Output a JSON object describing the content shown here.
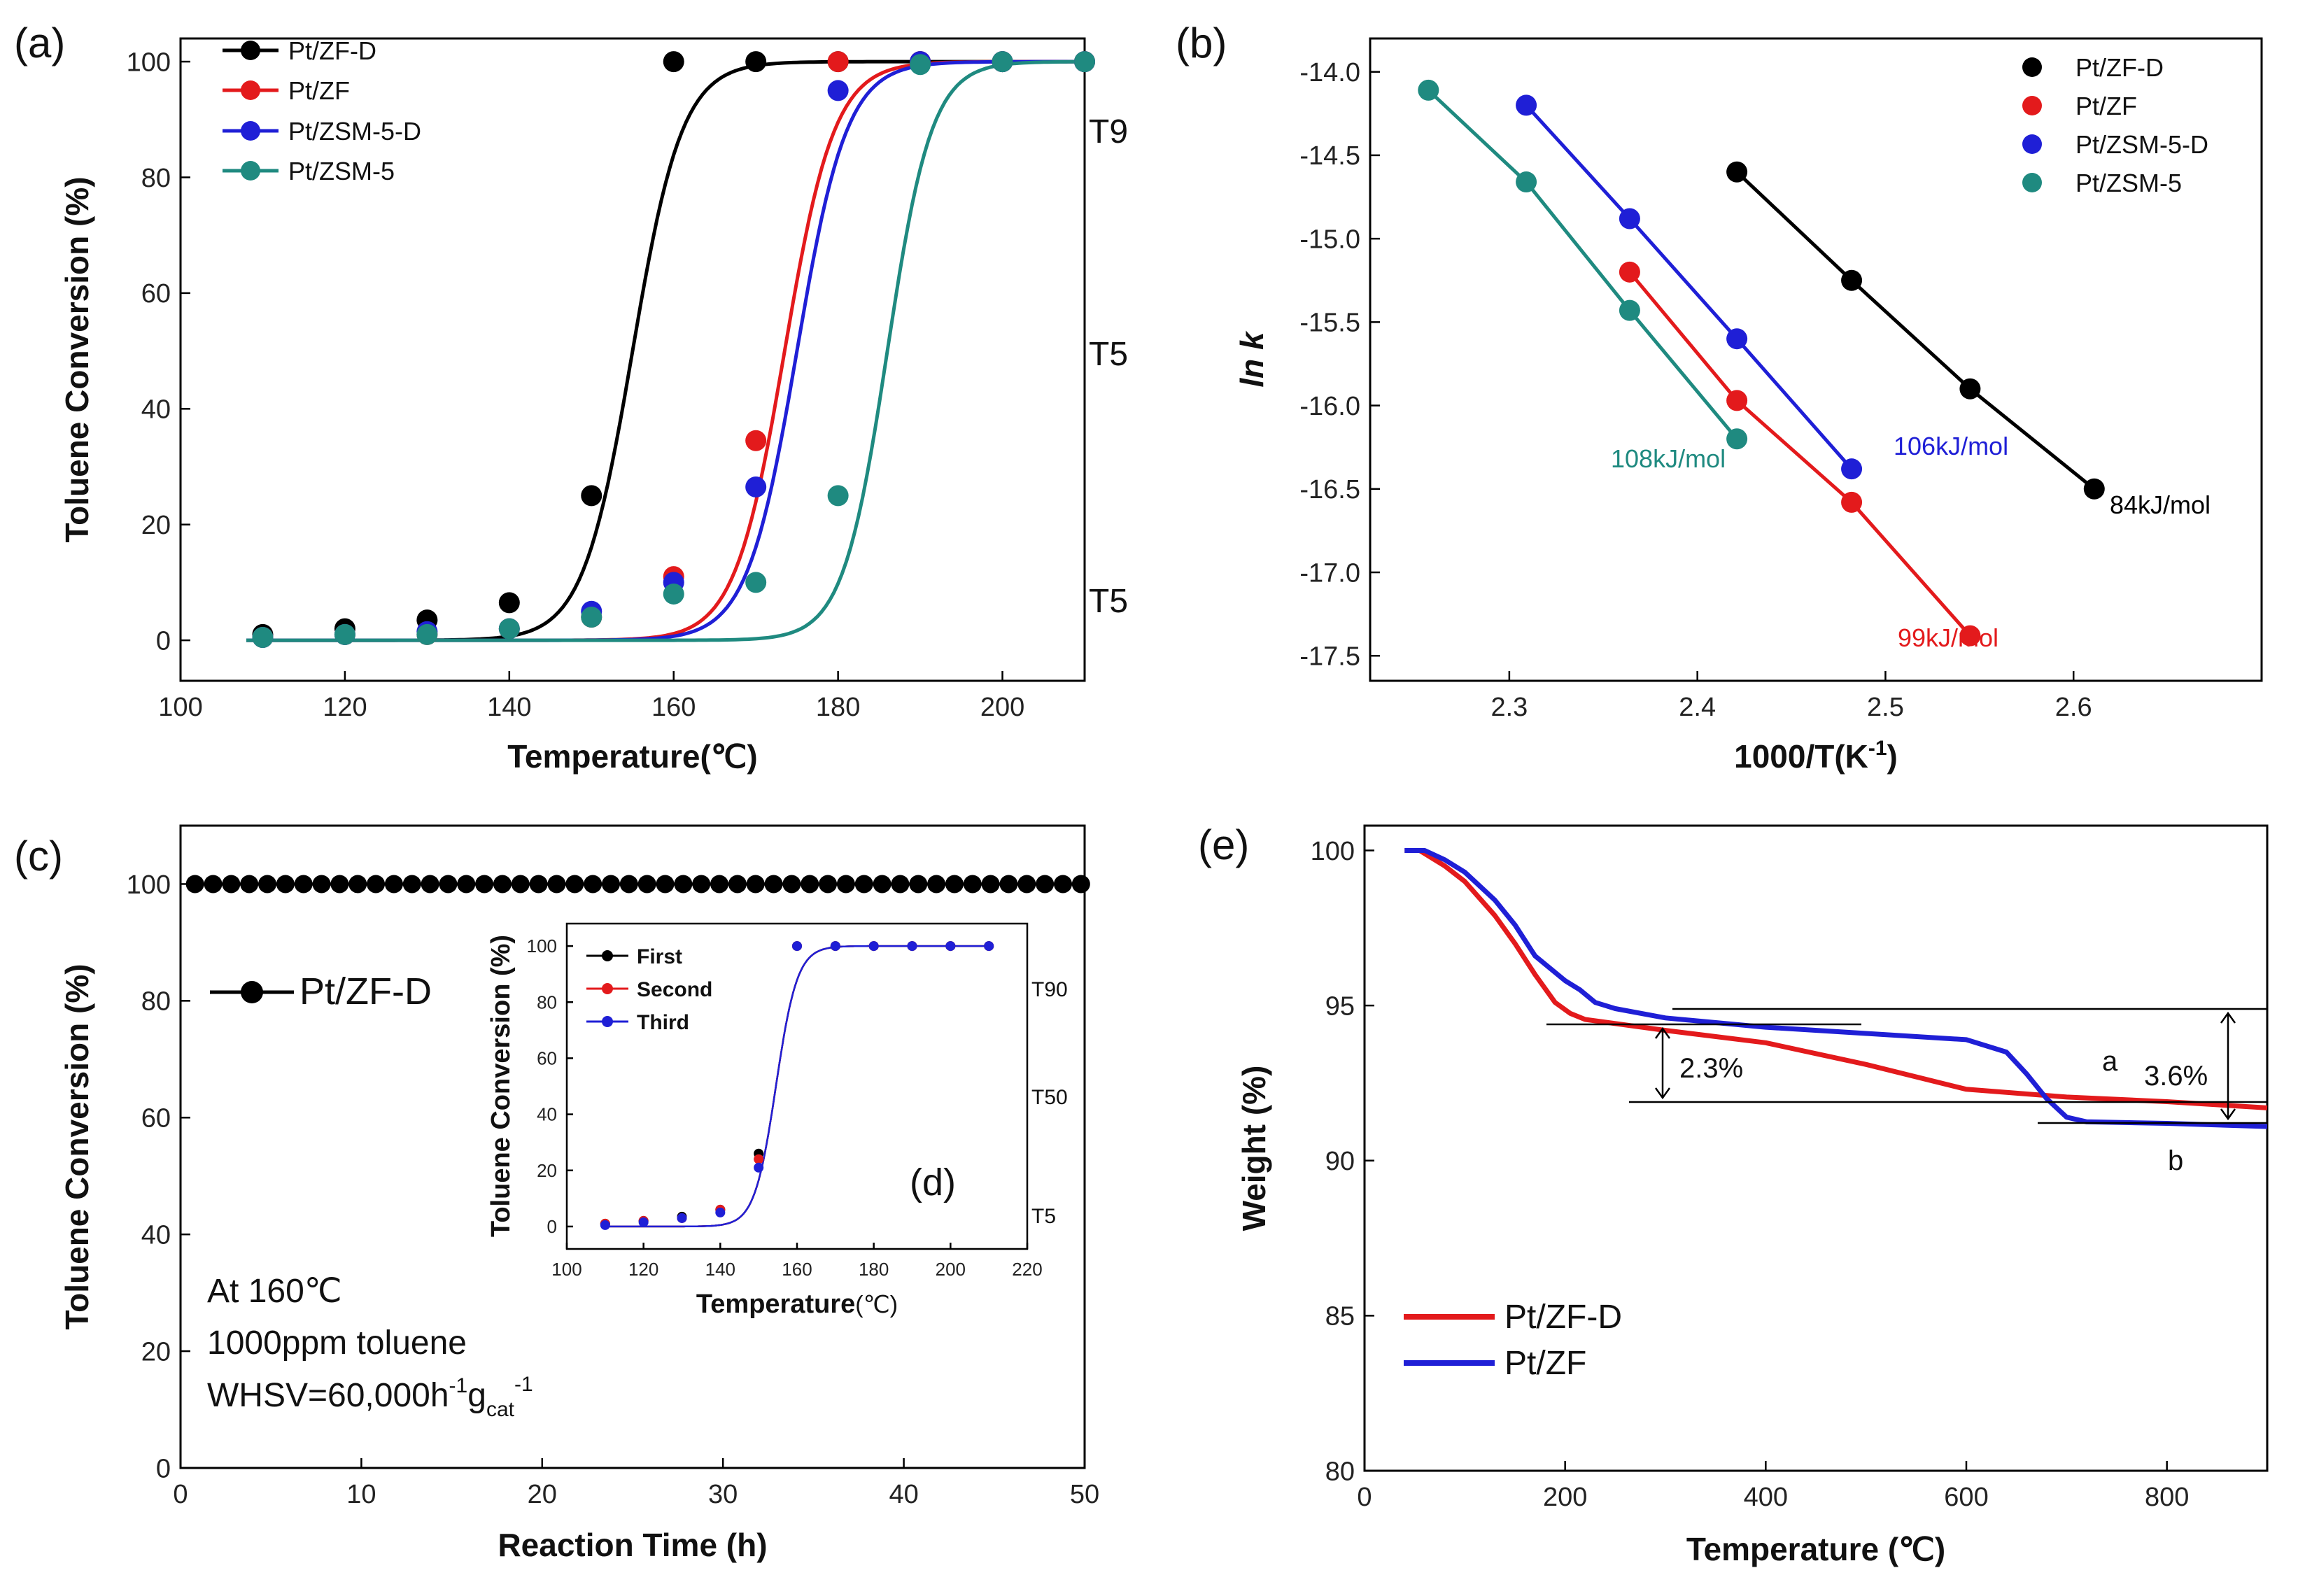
{
  "panels": [
    {
      "id": "a",
      "label": "(a)",
      "type": "scatter",
      "xlabel": "Temperature(℃)",
      "ylabel": "Toluene Conversion (%)",
      "xlim": [
        100,
        210
      ],
      "ylim": [
        -7,
        104
      ],
      "xticks": [
        "100",
        "120",
        "140",
        "160",
        "180",
        "200"
      ],
      "yticks": [
        "0",
        "20",
        "40",
        "60",
        "80",
        "100"
      ],
      "side_labels": [
        "T9",
        "T5",
        "T5"
      ],
      "series": [
        {
          "name": "Pt/ZF-D",
          "color": "#000000",
          "x": [
            110,
            120,
            130,
            140,
            150,
            160,
            170,
            180,
            190,
            200,
            210
          ],
          "y": [
            1,
            2,
            3.5,
            6.5,
            25,
            100,
            100,
            100,
            100,
            100,
            100
          ],
          "T50": 155,
          "k": 0.33
        },
        {
          "name": "Pt/ZF",
          "color": "#e31a1c",
          "x": [
            110,
            120,
            130,
            140,
            150,
            160,
            170,
            180,
            190,
            200,
            210
          ],
          "y": [
            0.5,
            1,
            1,
            2,
            4,
            11,
            34.5,
            100,
            100,
            100,
            100
          ],
          "T50": 173.5,
          "k": 0.33
        },
        {
          "name": "Pt/ZSM-5-D",
          "color": "#1f1fd6",
          "x": [
            110,
            120,
            130,
            140,
            150,
            160,
            170,
            180,
            190,
            200,
            210
          ],
          "y": [
            0.5,
            1,
            1.5,
            2,
            5,
            10,
            26.5,
            95,
            100,
            100,
            100
          ],
          "T50": 175,
          "k": 0.33
        },
        {
          "name": "Pt/ZSM-5",
          "color": "#1f8a80",
          "x": [
            110,
            120,
            130,
            140,
            150,
            160,
            170,
            180,
            190,
            200,
            210
          ],
          "y": [
            0.5,
            1,
            1,
            2,
            4,
            8,
            10,
            25,
            99.5,
            100,
            100
          ],
          "T50": 186,
          "k": 0.37
        }
      ]
    },
    {
      "id": "b",
      "label": "(b)",
      "type": "scatter",
      "xlabel": "1000/T(K",
      "xlabel_sup": "-1",
      "xlabel_tail": ")",
      "ylabel": "ln k",
      "xlim": [
        2.226,
        2.7
      ],
      "ylim": [
        -17.65,
        -13.8
      ],
      "xticks": [
        "2.3",
        "2.4",
        "2.5",
        "2.6"
      ],
      "yticks": [
        "-14.0",
        "-14.5",
        "-15.0",
        "-15.5",
        "-16.0",
        "-16.5",
        "-17.0",
        "-17.5"
      ],
      "series": [
        {
          "name": "Pt/ZF-D",
          "color": "#000000",
          "x": [
            2.421,
            2.482,
            2.545,
            2.611
          ],
          "y": [
            -14.6,
            -15.25,
            -15.9,
            -16.5
          ],
          "energy": "84kJ/mol"
        },
        {
          "name": "Pt/ZF",
          "color": "#e31a1c",
          "x": [
            2.364,
            2.421,
            2.482,
            2.545
          ],
          "y": [
            -15.2,
            -15.97,
            -16.58,
            -17.38
          ],
          "energy": "99kJ/mol"
        },
        {
          "name": "Pt/ZSM-5-D",
          "color": "#1f1fd6",
          "x": [
            2.309,
            2.364,
            2.421,
            2.482
          ],
          "y": [
            -14.2,
            -14.88,
            -15.6,
            -16.38
          ],
          "energy": "106kJ/mol"
        },
        {
          "name": "Pt/ZSM-5",
          "color": "#1f8a80",
          "x": [
            2.257,
            2.309,
            2.364,
            2.421
          ],
          "y": [
            -14.11,
            -14.66,
            -15.43,
            -16.2
          ],
          "energy": "108kJ/mol"
        }
      ]
    },
    {
      "id": "c",
      "label": "(c)",
      "type": "scatter",
      "xlabel": "Reaction Time (h)",
      "ylabel": "Toluene Conversion (%)",
      "xlim": [
        0,
        50
      ],
      "ylim": [
        0,
        110
      ],
      "xticks": [
        "0",
        "10",
        "20",
        "30",
        "40",
        "50"
      ],
      "yticks": [
        "0",
        "20",
        "40",
        "60",
        "80",
        "100"
      ],
      "series": [
        {
          "name": "Pt/ZF-D",
          "color": "#000000",
          "x_start": 0.8,
          "x_step": 1.0,
          "count": 50,
          "y": 100
        }
      ],
      "conditions": {
        "temp": "At 160℃",
        "conc": "1000ppm toluene",
        "whsv": "WHSV=60,000h",
        "whsv_sup1": "-1",
        "whsv_g": "g",
        "whsv_sub": "cat",
        "whsv_sup2": "-1"
      }
    },
    {
      "id": "d",
      "label": "(d)",
      "type": "line",
      "xlabel": "Temperature",
      "xlabel_unit": "(℃)",
      "ylabel": "Toluene Conversion (%)",
      "xlim": [
        100,
        220
      ],
      "ylim": [
        -8,
        108
      ],
      "xticks": [
        "100",
        "120",
        "140",
        "160",
        "180",
        "200",
        "220"
      ],
      "yticks": [
        "0",
        "20",
        "40",
        "60",
        "80",
        "100"
      ],
      "side_labels": [
        "T90",
        "T50",
        "T5"
      ],
      "series": [
        {
          "name": "First",
          "color": "#000000",
          "x": [
            110,
            120,
            130,
            140,
            150,
            160,
            170,
            180,
            190,
            200,
            210
          ],
          "y": [
            1,
            2,
            3.5,
            6,
            26,
            100,
            100,
            100,
            100,
            100,
            100
          ]
        },
        {
          "name": "Second",
          "color": "#e31a1c",
          "x": [
            110,
            120,
            130,
            140,
            150,
            160,
            170,
            180,
            190,
            200,
            210
          ],
          "y": [
            1,
            2,
            3,
            6,
            24,
            100,
            100,
            100,
            100,
            100,
            100
          ]
        },
        {
          "name": "Third",
          "color": "#1f1fd6",
          "x": [
            110,
            120,
            130,
            140,
            150,
            160,
            170,
            180,
            190,
            200,
            210
          ],
          "y": [
            0.5,
            1.5,
            3,
            5,
            21,
            100,
            100,
            100,
            100,
            100,
            100
          ]
        }
      ]
    },
    {
      "id": "e",
      "label": "(e)",
      "type": "line",
      "xlabel": "Temperature (℃)",
      "ylabel": "Weight (%)",
      "xlim": [
        0,
        900
      ],
      "ylim": [
        80,
        100.8
      ],
      "xticks": [
        "0",
        "200",
        "400",
        "600",
        "800"
      ],
      "yticks": [
        "80",
        "85",
        "90",
        "95",
        "100"
      ],
      "series": [
        {
          "name": "Pt/ZF-D",
          "color": "#e31a1c",
          "x": [
            40,
            55,
            80,
            100,
            130,
            150,
            170,
            190,
            205,
            220,
            300,
            400,
            500,
            600,
            700,
            800,
            900
          ],
          "y": [
            100,
            100,
            99.5,
            99,
            97.9,
            97,
            96,
            95.1,
            94.75,
            94.55,
            94.2,
            93.8,
            93.1,
            92.3,
            92.05,
            91.9,
            91.7
          ]
        },
        {
          "name": "Pt/ZF",
          "color": "#1f1fd6",
          "x": [
            40,
            60,
            80,
            100,
            130,
            150,
            170,
            200,
            215,
            230,
            250,
            300,
            400,
            500,
            600,
            640,
            660,
            680,
            700,
            720,
            800,
            900
          ],
          "y": [
            100,
            100,
            99.7,
            99.3,
            98.4,
            97.6,
            96.6,
            95.8,
            95.5,
            95.1,
            94.9,
            94.6,
            94.3,
            94.1,
            93.9,
            93.5,
            92.8,
            92,
            91.4,
            91.25,
            91.2,
            91.1
          ]
        }
      ],
      "annotations": {
        "drop1": "2.3%",
        "drop2": "3.6%",
        "curve_a": "a",
        "curve_b": "b"
      }
    }
  ]
}
